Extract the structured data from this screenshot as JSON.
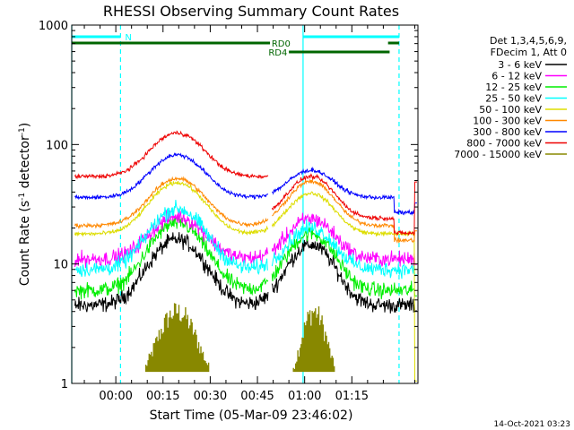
{
  "chart_data": {
    "type": "line",
    "title": "RHESSI Observing Summary Count Rates",
    "xlabel": "Start Time (05-Mar-09 23:46:02)",
    "ylabel_main": "Count Rate (s",
    "ylabel_sup1": "-1",
    "ylabel_mid": " detector",
    "ylabel_sup2": "-1",
    "ylabel_end": ")",
    "yscale": "log",
    "ylim": [
      1,
      1000
    ],
    "xlim_minutes": [
      -14,
      96
    ],
    "x_start": "00:00",
    "x_ticks": [
      "00:00",
      "00:15",
      "00:30",
      "00:45",
      "01:00",
      "01:15"
    ],
    "x_tick_minutes": [
      0,
      15,
      30,
      45,
      60,
      75
    ],
    "y_ticks": [
      "1",
      "10",
      "100",
      "1000"
    ],
    "y_tick_values": [
      1,
      10,
      100,
      1000
    ],
    "grid": false,
    "legend_position": "right",
    "legend_header": [
      "Det 1,3,4,5,6,9,",
      "FDecim 1, Att 0"
    ],
    "series": [
      {
        "name": "3 - 6 keV",
        "color": "#000000"
      },
      {
        "name": "6 - 12 keV",
        "color": "#ff00ff"
      },
      {
        "name": "12 - 25 keV",
        "color": "#00ee00"
      },
      {
        "name": "25 - 50 keV",
        "color": "#00ffff"
      },
      {
        "name": "50 - 100 keV",
        "color": "#dddd00"
      },
      {
        "name": "100 - 300 keV",
        "color": "#ff8800"
      },
      {
        "name": "300 - 800 keV",
        "color": "#0000ff"
      },
      {
        "name": "800 - 7000 keV",
        "color": "#ee0000"
      },
      {
        "name": "7000 - 15000 keV",
        "color": "#888800"
      }
    ],
    "night_marker": {
      "label": "N",
      "color": "#00ffff"
    },
    "rd0": {
      "label": "RD0",
      "color": "#006600"
    },
    "rd4": {
      "label": "RD4",
      "color": "#006600"
    }
  },
  "timestamp": "14-Oct-2021 03:23"
}
